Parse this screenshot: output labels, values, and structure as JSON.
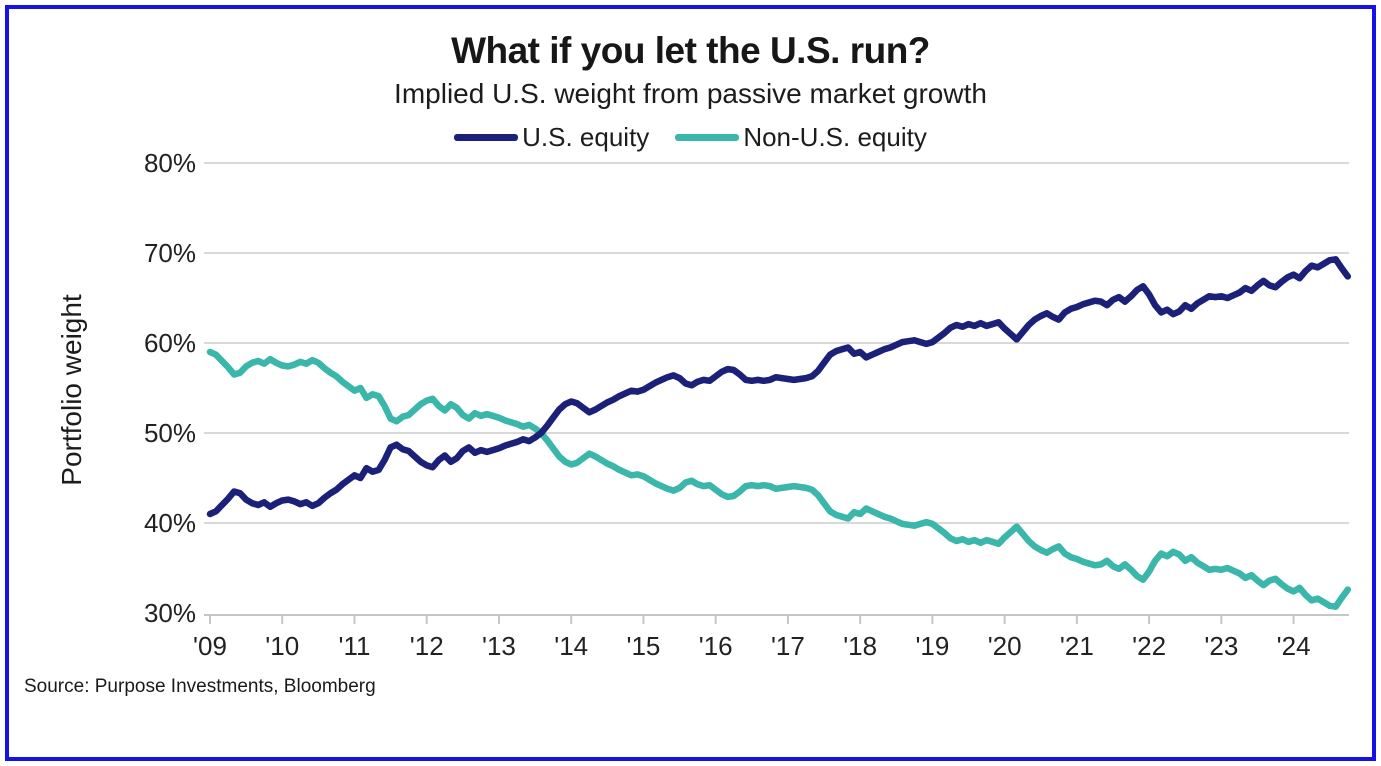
{
  "page": {
    "background_color": "#ffffff",
    "border_color": "#1611e6"
  },
  "header": {
    "title": "What if you let the U.S. run?",
    "subtitle": "Implied U.S. weight from passive market growth"
  },
  "footer": {
    "source": "Source: Purpose Investments, Bloomberg"
  },
  "chart_data": {
    "type": "line",
    "title": "What if you let the U.S. run?",
    "subtitle": "Implied U.S. weight from passive market growth",
    "xlabel": "",
    "ylabel": "Portfolio weight",
    "ylim": [
      30,
      80
    ],
    "ytick_values": [
      80,
      70,
      60,
      50,
      40,
      30
    ],
    "ytick_labels": [
      "80%",
      "70%",
      "60%",
      "50%",
      "40%",
      "30%"
    ],
    "xtick_labels": [
      "'09",
      "'10",
      "'11",
      "'12",
      "'13",
      "'14",
      "'15",
      "'16",
      "'17",
      "'18",
      "'19",
      "'20",
      "'21",
      "'22",
      "'23",
      "'24"
    ],
    "x_start": "2009-01",
    "x_end": "2024-10",
    "frequency": "monthly",
    "grid": "horizontal",
    "legend_position": "top",
    "gridline_color": "#d9d9d9",
    "axisline_color": "#c6c6c6",
    "series": [
      {
        "name": "U.S. equity",
        "color": "#1b2178",
        "values": [
          41.0,
          41.3,
          42.0,
          42.7,
          43.5,
          43.3,
          42.6,
          42.2,
          42.0,
          42.3,
          41.8,
          42.2,
          42.5,
          42.6,
          42.4,
          42.1,
          42.3,
          41.9,
          42.2,
          42.8,
          43.3,
          43.7,
          44.3,
          44.8,
          45.3,
          45.0,
          46.1,
          45.7,
          45.9,
          47.0,
          48.4,
          48.7,
          48.2,
          48.0,
          47.4,
          46.8,
          46.4,
          46.2,
          47.0,
          47.5,
          46.8,
          47.2,
          48.0,
          48.4,
          47.8,
          48.1,
          47.9,
          48.1,
          48.3,
          48.6,
          48.8,
          49.0,
          49.3,
          49.1,
          49.5,
          50.0,
          50.8,
          51.7,
          52.6,
          53.2,
          53.5,
          53.3,
          52.8,
          52.3,
          52.6,
          53.0,
          53.4,
          53.7,
          54.1,
          54.4,
          54.7,
          54.6,
          54.8,
          55.2,
          55.6,
          55.9,
          56.2,
          56.4,
          56.1,
          55.5,
          55.3,
          55.7,
          55.9,
          55.8,
          56.3,
          56.8,
          57.1,
          57.0,
          56.5,
          55.9,
          55.8,
          55.9,
          55.8,
          55.9,
          56.2,
          56.1,
          56.0,
          55.9,
          56.0,
          56.1,
          56.3,
          56.9,
          57.8,
          58.7,
          59.1,
          59.3,
          59.5,
          58.8,
          59.0,
          58.4,
          58.7,
          59.0,
          59.3,
          59.5,
          59.8,
          60.1,
          60.2,
          60.3,
          60.1,
          59.9,
          60.1,
          60.6,
          61.1,
          61.7,
          62.0,
          61.8,
          62.1,
          61.9,
          62.2,
          61.9,
          62.1,
          62.3,
          61.6,
          61.0,
          60.4,
          61.2,
          62.0,
          62.6,
          63.0,
          63.3,
          62.9,
          62.6,
          63.4,
          63.8,
          64.0,
          64.3,
          64.5,
          64.7,
          64.6,
          64.2,
          64.8,
          65.1,
          64.6,
          65.2,
          65.9,
          66.3,
          65.4,
          64.2,
          63.4,
          63.7,
          63.2,
          63.5,
          64.2,
          63.8,
          64.4,
          64.8,
          65.2,
          65.1,
          65.2,
          65.0,
          65.3,
          65.6,
          66.1,
          65.8,
          66.4,
          66.9,
          66.4,
          66.2,
          66.8,
          67.3,
          67.6,
          67.2,
          68.0,
          68.6,
          68.4,
          68.8,
          69.2,
          69.3,
          68.3,
          67.4
        ]
      },
      {
        "name": "Non-U.S. equity",
        "color": "#3bb6aa",
        "values": [
          59.0,
          58.7,
          58.0,
          57.3,
          56.5,
          56.7,
          57.4,
          57.8,
          58.0,
          57.7,
          58.2,
          57.8,
          57.5,
          57.4,
          57.6,
          57.9,
          57.7,
          58.1,
          57.8,
          57.2,
          56.7,
          56.3,
          55.7,
          55.2,
          54.7,
          55.0,
          53.9,
          54.3,
          54.1,
          53.0,
          51.6,
          51.3,
          51.8,
          52.0,
          52.6,
          53.2,
          53.6,
          53.8,
          53.0,
          52.5,
          53.2,
          52.8,
          52.0,
          51.6,
          52.2,
          51.9,
          52.1,
          51.9,
          51.7,
          51.4,
          51.2,
          51.0,
          50.7,
          50.9,
          50.5,
          50.0,
          49.2,
          48.3,
          47.4,
          46.8,
          46.5,
          46.7,
          47.2,
          47.7,
          47.4,
          47.0,
          46.6,
          46.3,
          45.9,
          45.6,
          45.3,
          45.4,
          45.2,
          44.8,
          44.4,
          44.1,
          43.8,
          43.6,
          43.9,
          44.5,
          44.7,
          44.3,
          44.1,
          44.2,
          43.7,
          43.2,
          42.9,
          43.0,
          43.5,
          44.1,
          44.2,
          44.1,
          44.2,
          44.1,
          43.8,
          43.9,
          44.0,
          44.1,
          44.0,
          43.9,
          43.7,
          43.1,
          42.2,
          41.3,
          40.9,
          40.7,
          40.5,
          41.2,
          41.0,
          41.6,
          41.3,
          41.0,
          40.7,
          40.5,
          40.2,
          39.9,
          39.8,
          39.7,
          39.9,
          40.1,
          39.9,
          39.4,
          38.9,
          38.3,
          38.0,
          38.2,
          37.9,
          38.1,
          37.8,
          38.1,
          37.9,
          37.7,
          38.4,
          39.0,
          39.6,
          38.8,
          38.0,
          37.4,
          37.0,
          36.7,
          37.1,
          37.4,
          36.6,
          36.2,
          36.0,
          35.7,
          35.5,
          35.3,
          35.4,
          35.8,
          35.2,
          34.9,
          35.4,
          34.8,
          34.1,
          33.7,
          34.6,
          35.8,
          36.6,
          36.3,
          36.8,
          36.5,
          35.8,
          36.2,
          35.6,
          35.2,
          34.8,
          34.9,
          34.8,
          35.0,
          34.7,
          34.4,
          33.9,
          34.2,
          33.6,
          33.1,
          33.6,
          33.8,
          33.2,
          32.7,
          32.4,
          32.8,
          32.0,
          31.4,
          31.6,
          31.2,
          30.8,
          30.7,
          31.7,
          32.6
        ]
      }
    ]
  }
}
